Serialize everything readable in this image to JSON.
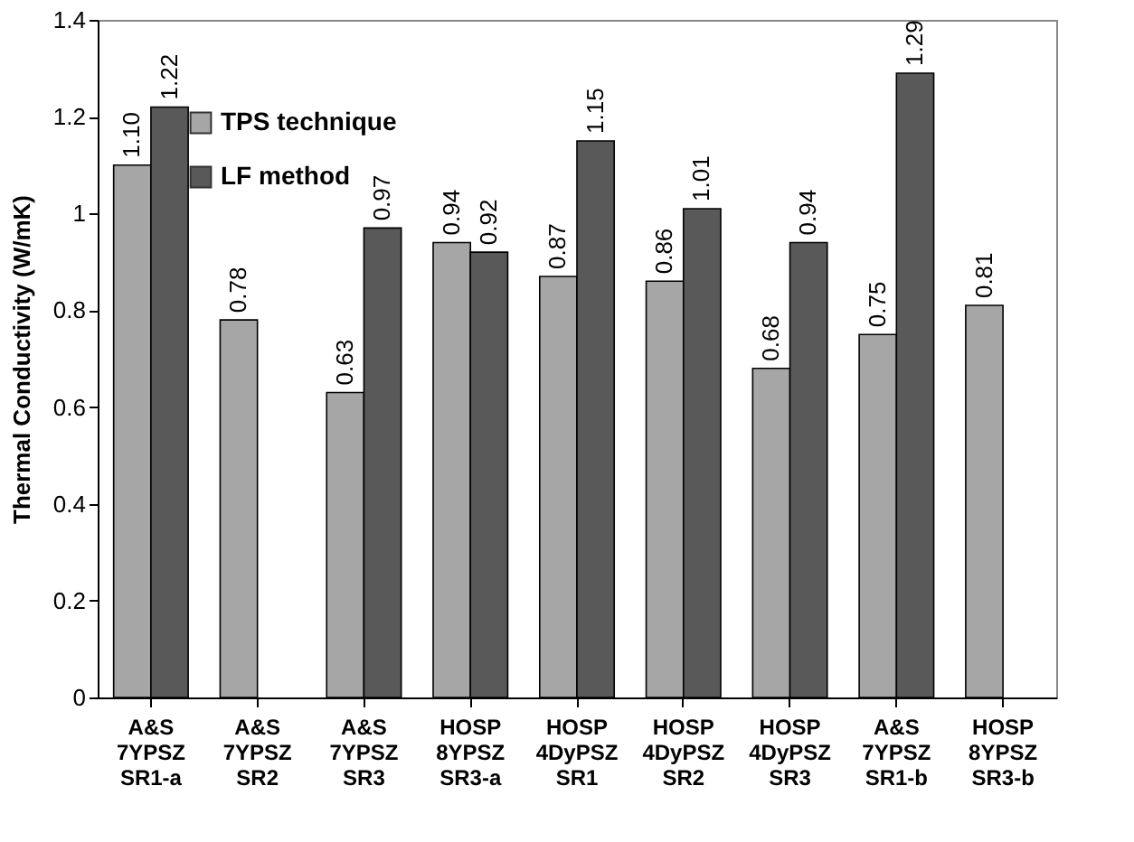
{
  "chart_data": {
    "type": "bar",
    "ylabel": "Thermal Conductivity (W/mK)",
    "categories": [
      "A&S\n7YPSZ\nSR1-a",
      "A&S\n7YPSZ\nSR2",
      "A&S\n7YPSZ\nSR3",
      "HOSP\n8YPSZ\nSR3-a",
      "HOSP\n4DyPSZ\nSR1",
      "HOSP\n4DyPSZ\nSR2",
      "HOSP\n4DyPSZ\nSR3",
      "A&S\n7YPSZ\nSR1-b",
      "HOSP\n8YPSZ\nSR3-b"
    ],
    "series": [
      {
        "name": "TPS technique",
        "color": "#a6a6a6",
        "values": [
          1.1,
          0.78,
          0.63,
          0.94,
          0.87,
          0.86,
          0.68,
          0.75,
          0.81
        ],
        "value_labels": [
          "1.10",
          "0.78",
          "0.63",
          "0.94",
          "0.87",
          "0.86",
          "0.68",
          "0.75",
          "0.81"
        ]
      },
      {
        "name": "LF method",
        "color": "#595959",
        "values": [
          1.22,
          null,
          0.97,
          0.92,
          1.15,
          1.01,
          0.94,
          1.29,
          null
        ],
        "value_labels": [
          "1.22",
          null,
          "0.97",
          "0.92",
          "1.15",
          "1.01",
          "0.94",
          "1.29",
          null
        ]
      }
    ],
    "ylim": [
      0,
      1.4
    ],
    "yticks": [
      0,
      {
        "value": 0.2,
        "label": "0.2"
      },
      {
        "value": 0.4,
        "label": "0.4"
      },
      {
        "value": 0.6,
        "label": "0.6"
      },
      {
        "value": 0.8,
        "label": "0.8"
      },
      1,
      {
        "value": 1.2,
        "label": "1.2"
      },
      {
        "value": 1.4,
        "label": "1.4"
      }
    ],
    "grid": false,
    "legend": "top left"
  }
}
